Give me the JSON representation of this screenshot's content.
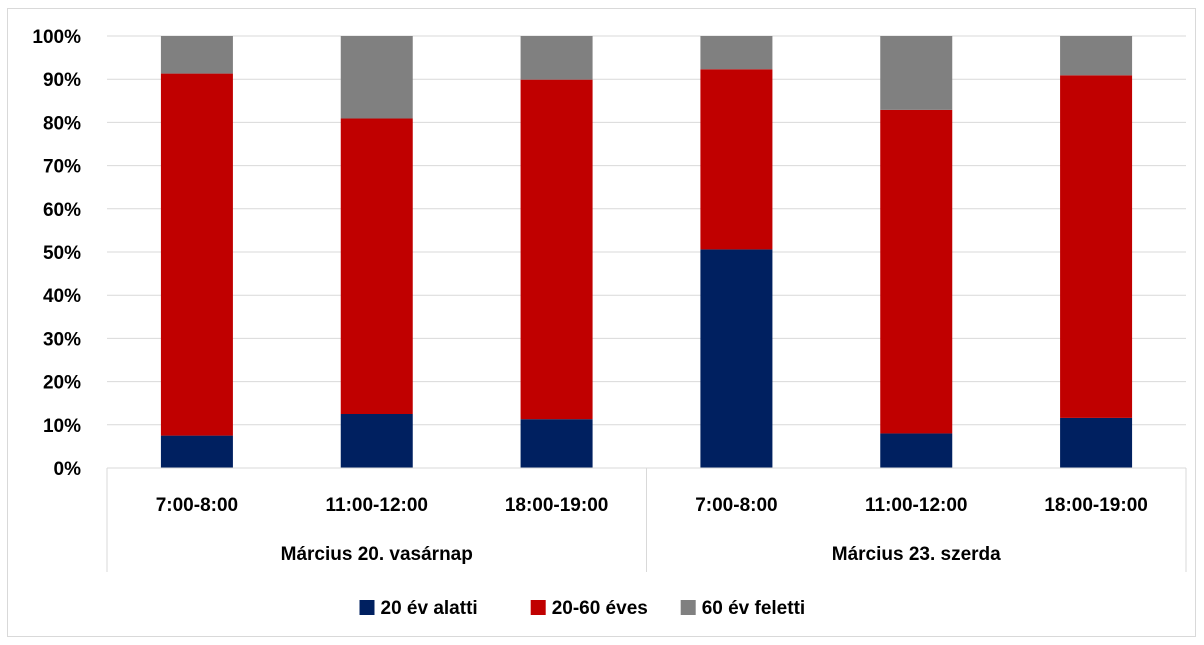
{
  "chart_data": {
    "type": "bar",
    "stacked": true,
    "percent_stacked": true,
    "groups": [
      {
        "label": "Március 20. vasárnap",
        "categories": [
          "7:00-8:00",
          "11:00-12:00",
          "18:00-19:00"
        ]
      },
      {
        "label": "Március 23. szerda",
        "categories": [
          "7:00-8:00",
          "11:00-12:00",
          "18:00-19:00"
        ]
      }
    ],
    "categories": [
      "7:00-8:00",
      "11:00-12:00",
      "18:00-19:00",
      "7:00-8:00",
      "11:00-12:00",
      "18:00-19:00"
    ],
    "series": [
      {
        "name": "20 év alatti",
        "color": "#002060",
        "values": [
          7.5,
          12.5,
          11.3,
          50.6,
          8.0,
          11.6
        ]
      },
      {
        "name": "20-60 éves",
        "color": "#c00000",
        "values": [
          83.8,
          68.4,
          78.6,
          41.7,
          74.9,
          79.3
        ]
      },
      {
        "name": "60 év feletti",
        "color": "#808080",
        "values": [
          8.7,
          19.1,
          10.1,
          7.7,
          17.1,
          9.1
        ]
      }
    ],
    "y_ticks": [
      "0%",
      "10%",
      "20%",
      "30%",
      "40%",
      "50%",
      "60%",
      "70%",
      "80%",
      "90%",
      "100%"
    ],
    "ylim": [
      0,
      100
    ],
    "grid": true,
    "legend_position": "bottom",
    "title": "",
    "xlabel": "",
    "ylabel": ""
  }
}
